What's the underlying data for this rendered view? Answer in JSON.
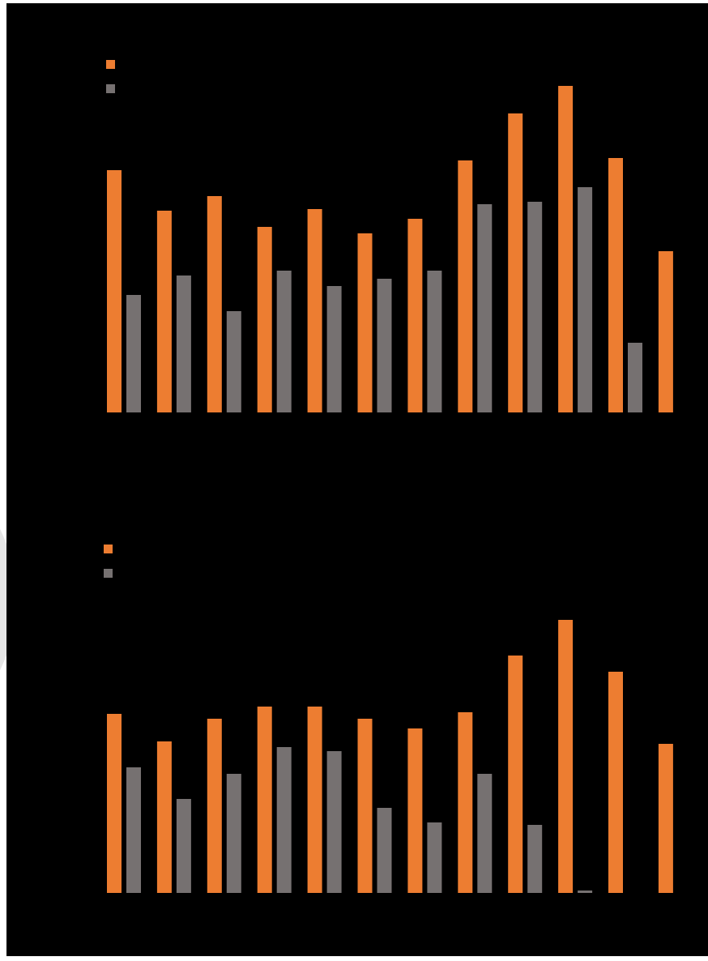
{
  "colors": {
    "background": "#000000",
    "series_primary": "#ed7d31",
    "series_secondary": "#767171"
  },
  "chart_data": [
    {
      "type": "bar",
      "categories": [
        "",
        "",
        "",
        "",
        "",
        "",
        "",
        "",
        "",
        "",
        "",
        ""
      ],
      "series": [
        {
          "values": [
            299,
            249,
            267,
            229,
            251,
            221,
            239,
            311,
            369,
            403,
            314,
            199
          ]
        },
        {
          "values": [
            145,
            169,
            125,
            175,
            156,
            165,
            175,
            257,
            260,
            278,
            86,
            null
          ]
        }
      ],
      "ylim": [
        0,
        450
      ],
      "grid": false,
      "legend": "top-left"
    },
    {
      "type": "bar",
      "categories": [
        "",
        "",
        "",
        "",
        "",
        "",
        "",
        "",
        "",
        "",
        "",
        ""
      ],
      "series": [
        {
          "values": [
            221,
            187,
            215,
            230,
            230,
            215,
            203,
            223,
            293,
            337,
            273,
            184
          ]
        },
        {
          "values": [
            155,
            116,
            147,
            180,
            175,
            105,
            87,
            147,
            84,
            3,
            null,
            null
          ]
        }
      ],
      "ylim": [
        0,
        450
      ],
      "grid": false,
      "legend": "top-left"
    }
  ]
}
